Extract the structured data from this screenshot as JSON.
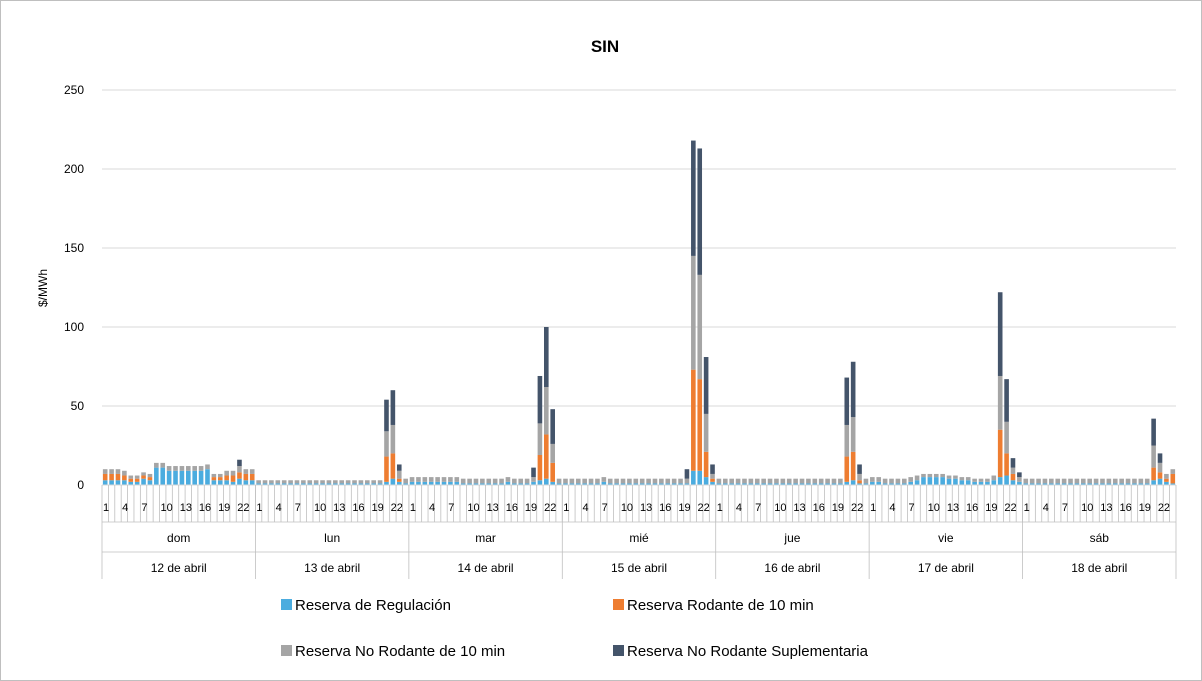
{
  "chart_data": {
    "type": "bar",
    "stacked": true,
    "title": "SIN",
    "ylabel": "$/MWh",
    "ylim": [
      0,
      250
    ],
    "yticks": [
      0,
      50,
      100,
      150,
      200,
      250
    ],
    "grid": true,
    "legend_position": "bottom",
    "hour_labels": [
      "1",
      "4",
      "7",
      "10",
      "13",
      "16",
      "19",
      "22"
    ],
    "days": [
      {
        "weekday": "dom",
        "date": "12 de abril"
      },
      {
        "weekday": "lun",
        "date": "13 de abril"
      },
      {
        "weekday": "mar",
        "date": "14 de abril"
      },
      {
        "weekday": "mié",
        "date": "15 de abril"
      },
      {
        "weekday": "jue",
        "date": "16 de abril"
      },
      {
        "weekday": "vie",
        "date": "17 de abril"
      },
      {
        "weekday": "sáb",
        "date": "18 de abril"
      }
    ],
    "series": [
      {
        "name": "Reserva de Regulación",
        "color": "#4bacdf",
        "values": [
          [
            3,
            3,
            3,
            3,
            2,
            2,
            4,
            3,
            11,
            11,
            9,
            9,
            9,
            9,
            9,
            9,
            10,
            3,
            3,
            3,
            2,
            4,
            3,
            3
          ],
          [
            1,
            1,
            1,
            1,
            1,
            1,
            1,
            1,
            1,
            1,
            1,
            1,
            1,
            1,
            1,
            1,
            1,
            1,
            1,
            1,
            2,
            4,
            2,
            1
          ],
          [
            2,
            2,
            2,
            2,
            2,
            2,
            2,
            2,
            1,
            1,
            1,
            1,
            1,
            1,
            1,
            2,
            1,
            1,
            1,
            2,
            3,
            4,
            2,
            1
          ],
          [
            1,
            1,
            1,
            1,
            1,
            1,
            2,
            1,
            1,
            1,
            1,
            1,
            1,
            1,
            1,
            1,
            1,
            1,
            1,
            1,
            9,
            9,
            5,
            2
          ],
          [
            1,
            1,
            1,
            1,
            1,
            1,
            1,
            1,
            1,
            1,
            1,
            1,
            1,
            1,
            1,
            1,
            1,
            1,
            1,
            1,
            2,
            3,
            1,
            1
          ],
          [
            2,
            2,
            1,
            1,
            1,
            1,
            2,
            3,
            5,
            5,
            5,
            5,
            4,
            4,
            3,
            3,
            2,
            2,
            2,
            3,
            5,
            6,
            3,
            2
          ],
          [
            1,
            1,
            1,
            1,
            1,
            1,
            1,
            1,
            1,
            1,
            1,
            1,
            1,
            1,
            1,
            1,
            1,
            1,
            1,
            1,
            3,
            4,
            2,
            1
          ]
        ]
      },
      {
        "name": "Reserva Rodante de 10 min",
        "color": "#ee7d31",
        "values": [
          [
            4,
            4,
            4,
            3,
            2,
            2,
            2,
            2,
            0,
            0,
            0,
            0,
            0,
            0,
            0,
            0,
            0,
            2,
            2,
            3,
            4,
            4,
            4,
            4
          ],
          [
            0,
            0,
            0,
            0,
            0,
            0,
            0,
            0,
            0,
            0,
            0,
            0,
            0,
            0,
            0,
            0,
            0,
            0,
            0,
            0,
            16,
            16,
            2,
            0
          ],
          [
            0,
            0,
            0,
            0,
            0,
            0,
            0,
            0,
            0,
            0,
            0,
            0,
            0,
            0,
            0,
            0,
            0,
            0,
            0,
            0,
            16,
            28,
            12,
            0
          ],
          [
            0,
            0,
            0,
            0,
            0,
            0,
            0,
            0,
            0,
            0,
            0,
            0,
            0,
            0,
            0,
            0,
            0,
            0,
            0,
            0,
            64,
            58,
            16,
            2
          ],
          [
            0,
            0,
            0,
            0,
            0,
            0,
            0,
            0,
            0,
            0,
            0,
            0,
            0,
            0,
            0,
            0,
            0,
            0,
            0,
            0,
            16,
            18,
            2,
            0
          ],
          [
            0,
            0,
            0,
            0,
            0,
            0,
            0,
            0,
            0,
            0,
            0,
            0,
            0,
            0,
            0,
            0,
            0,
            0,
            0,
            0,
            30,
            14,
            4,
            0
          ],
          [
            0,
            0,
            0,
            0,
            0,
            0,
            0,
            0,
            0,
            0,
            0,
            0,
            0,
            0,
            0,
            0,
            0,
            0,
            0,
            0,
            8,
            4,
            2,
            6
          ]
        ]
      },
      {
        "name": "Reserva No Rodante de 10 min",
        "color": "#a5a5a5",
        "values": [
          [
            3,
            3,
            3,
            3,
            2,
            2,
            2,
            2,
            3,
            3,
            3,
            3,
            3,
            3,
            3,
            3,
            3,
            2,
            2,
            3,
            3,
            4,
            3,
            3
          ],
          [
            2,
            2,
            2,
            2,
            2,
            2,
            2,
            2,
            2,
            2,
            2,
            2,
            2,
            2,
            2,
            2,
            2,
            2,
            2,
            2,
            16,
            18,
            5,
            3
          ],
          [
            3,
            3,
            3,
            3,
            3,
            3,
            3,
            3,
            3,
            3,
            3,
            3,
            3,
            3,
            3,
            3,
            3,
            3,
            3,
            3,
            20,
            30,
            12,
            3
          ],
          [
            3,
            3,
            3,
            3,
            3,
            3,
            3,
            3,
            3,
            3,
            3,
            3,
            3,
            3,
            3,
            3,
            3,
            3,
            3,
            3,
            72,
            66,
            24,
            3
          ],
          [
            3,
            3,
            3,
            3,
            3,
            3,
            3,
            3,
            3,
            3,
            3,
            3,
            3,
            3,
            3,
            3,
            3,
            3,
            3,
            3,
            20,
            22,
            4,
            3
          ],
          [
            3,
            3,
            3,
            3,
            3,
            3,
            3,
            3,
            2,
            2,
            2,
            2,
            2,
            2,
            2,
            2,
            2,
            2,
            2,
            3,
            34,
            20,
            4,
            3
          ],
          [
            3,
            3,
            3,
            3,
            3,
            3,
            3,
            3,
            3,
            3,
            3,
            3,
            3,
            3,
            3,
            3,
            3,
            3,
            3,
            3,
            14,
            6,
            3,
            3
          ]
        ]
      },
      {
        "name": "Reserva No Rodante Suplementaria",
        "color": "#44546a",
        "values": [
          [
            0,
            0,
            0,
            0,
            0,
            0,
            0,
            0,
            0,
            0,
            0,
            0,
            0,
            0,
            0,
            0,
            0,
            0,
            0,
            0,
            0,
            4,
            0,
            0
          ],
          [
            0,
            0,
            0,
            0,
            0,
            0,
            0,
            0,
            0,
            0,
            0,
            0,
            0,
            0,
            0,
            0,
            0,
            0,
            0,
            0,
            20,
            22,
            4,
            0
          ],
          [
            0,
            0,
            0,
            0,
            0,
            0,
            0,
            0,
            0,
            0,
            0,
            0,
            0,
            0,
            0,
            0,
            0,
            0,
            0,
            6,
            30,
            38,
            22,
            0
          ],
          [
            0,
            0,
            0,
            0,
            0,
            0,
            0,
            0,
            0,
            0,
            0,
            0,
            0,
            0,
            0,
            0,
            0,
            0,
            0,
            6,
            73,
            80,
            36,
            6
          ],
          [
            0,
            0,
            0,
            0,
            0,
            0,
            0,
            0,
            0,
            0,
            0,
            0,
            0,
            0,
            0,
            0,
            0,
            0,
            0,
            0,
            30,
            35,
            6,
            0
          ],
          [
            0,
            0,
            0,
            0,
            0,
            0,
            0,
            0,
            0,
            0,
            0,
            0,
            0,
            0,
            0,
            0,
            0,
            0,
            0,
            0,
            53,
            27,
            6,
            3
          ],
          [
            0,
            0,
            0,
            0,
            0,
            0,
            0,
            0,
            0,
            0,
            0,
            0,
            0,
            0,
            0,
            0,
            0,
            0,
            0,
            0,
            17,
            6,
            0,
            0
          ]
        ]
      }
    ]
  }
}
